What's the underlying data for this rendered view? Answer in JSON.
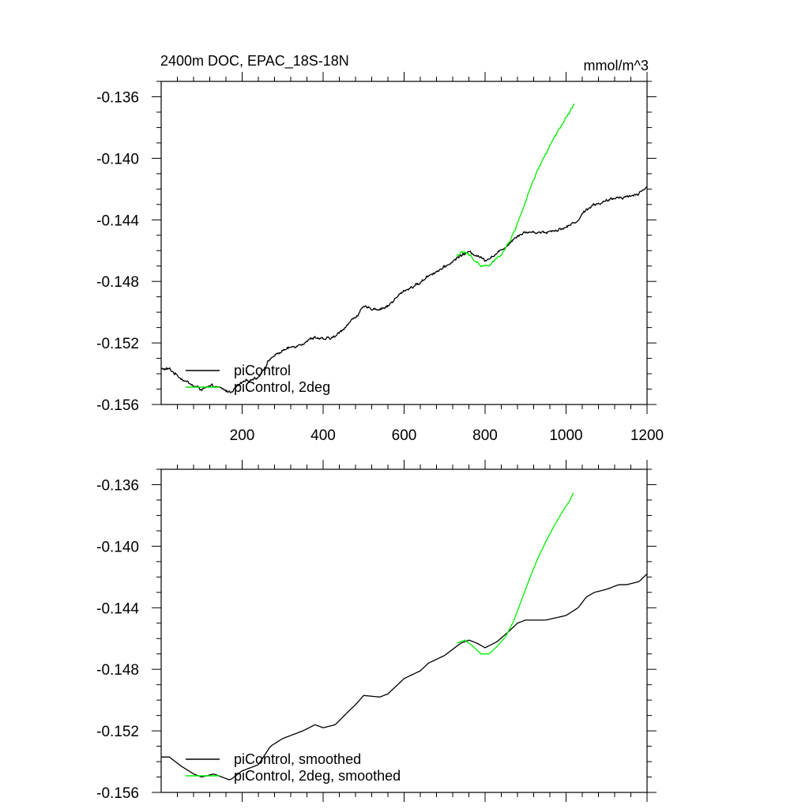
{
  "colors": {
    "picontrol": "#000000",
    "picontrol_2deg": "#00ee00",
    "frame": "#000000",
    "background": "#ffffff"
  },
  "chart_data": [
    {
      "type": "line",
      "title": "2400m DOC, EPAC_18S-18N",
      "units": "mmol/m^3",
      "xlabel": "",
      "ylabel": "",
      "xlim": [
        0,
        1200
      ],
      "ylim": [
        -0.156,
        -0.135
      ],
      "xticks": [
        200,
        400,
        600,
        800,
        1000,
        1200
      ],
      "xtick_labels": [
        "200",
        "400",
        "600",
        "800",
        "1000",
        "1200"
      ],
      "yticks": [
        -0.136,
        -0.14,
        -0.144,
        -0.148,
        -0.152,
        -0.156
      ],
      "ytick_labels": [
        "-0.136",
        "-0.140",
        "-0.144",
        "-0.148",
        "-0.152",
        "-0.156"
      ],
      "legend_position": "bottom-left",
      "series": [
        {
          "name": "piControl",
          "color": "#000000",
          "noisy": true,
          "x": [
            0,
            20,
            50,
            80,
            100,
            130,
            170,
            200,
            240,
            270,
            300,
            350,
            380,
            400,
            430,
            460,
            480,
            500,
            540,
            560,
            600,
            640,
            660,
            700,
            740,
            760,
            780,
            800,
            830,
            860,
            880,
            900,
            950,
            1000,
            1030,
            1050,
            1070,
            1100,
            1130,
            1150,
            1180,
            1200
          ],
          "y": [
            -0.1537,
            -0.1537,
            -0.1543,
            -0.1548,
            -0.155,
            -0.1548,
            -0.1552,
            -0.1546,
            -0.1542,
            -0.153,
            -0.1525,
            -0.152,
            -0.1516,
            -0.1518,
            -0.1516,
            -0.1508,
            -0.1503,
            -0.1497,
            -0.1498,
            -0.1496,
            -0.1486,
            -0.1481,
            -0.1476,
            -0.1471,
            -0.1463,
            -0.1461,
            -0.1463,
            -0.1466,
            -0.1462,
            -0.1455,
            -0.145,
            -0.1448,
            -0.1448,
            -0.1445,
            -0.144,
            -0.1433,
            -0.143,
            -0.1428,
            -0.1425,
            -0.1425,
            -0.1423,
            -0.1418
          ]
        },
        {
          "name": "piControl, 2deg",
          "color": "#00ee00",
          "noisy": true,
          "x": [
            730,
            750,
            770,
            790,
            810,
            830,
            850,
            870,
            890,
            910,
            930,
            950,
            970,
            990,
            1010,
            1020
          ],
          "y": [
            -0.1463,
            -0.1461,
            -0.1465,
            -0.147,
            -0.147,
            -0.1465,
            -0.1459,
            -0.1449,
            -0.1435,
            -0.1421,
            -0.1408,
            -0.1397,
            -0.1387,
            -0.1378,
            -0.137,
            -0.1364
          ]
        }
      ]
    },
    {
      "type": "line",
      "title": "",
      "units": "",
      "xlabel": "",
      "ylabel": "",
      "xlim": [
        0,
        1200
      ],
      "ylim": [
        -0.156,
        -0.135
      ],
      "xticks": [
        200,
        400,
        600,
        800,
        1000,
        1200
      ],
      "xtick_labels": [],
      "yticks": [
        -0.136,
        -0.14,
        -0.144,
        -0.148,
        -0.152,
        -0.156
      ],
      "ytick_labels": [
        "-0.136",
        "-0.140",
        "-0.144",
        "-0.148",
        "-0.152",
        "-0.156"
      ],
      "legend_position": "bottom-left",
      "series": [
        {
          "name": "piControl, smoothed",
          "color": "#000000",
          "noisy": false,
          "x": [
            0,
            20,
            50,
            80,
            100,
            130,
            170,
            200,
            240,
            270,
            300,
            350,
            380,
            400,
            430,
            460,
            480,
            500,
            540,
            560,
            600,
            640,
            660,
            700,
            740,
            760,
            780,
            800,
            830,
            860,
            880,
            900,
            950,
            1000,
            1030,
            1050,
            1070,
            1100,
            1130,
            1150,
            1180,
            1200
          ],
          "y": [
            -0.1537,
            -0.1537,
            -0.1543,
            -0.1548,
            -0.155,
            -0.1548,
            -0.1552,
            -0.1546,
            -0.1542,
            -0.153,
            -0.1525,
            -0.152,
            -0.1516,
            -0.1518,
            -0.1516,
            -0.1508,
            -0.1503,
            -0.1497,
            -0.1498,
            -0.1496,
            -0.1486,
            -0.1481,
            -0.1476,
            -0.1471,
            -0.1463,
            -0.1461,
            -0.1463,
            -0.1466,
            -0.1462,
            -0.1455,
            -0.145,
            -0.1448,
            -0.1448,
            -0.1445,
            -0.144,
            -0.1433,
            -0.143,
            -0.1428,
            -0.1425,
            -0.1425,
            -0.1423,
            -0.1418
          ]
        },
        {
          "name": "piControl, 2deg, smoothed",
          "color": "#00ee00",
          "noisy": false,
          "x": [
            730,
            750,
            770,
            790,
            810,
            830,
            850,
            870,
            890,
            910,
            930,
            950,
            970,
            990,
            1010,
            1020
          ],
          "y": [
            -0.1463,
            -0.1461,
            -0.1465,
            -0.147,
            -0.147,
            -0.1465,
            -0.1459,
            -0.1449,
            -0.1435,
            -0.1421,
            -0.1408,
            -0.1397,
            -0.1387,
            -0.1378,
            -0.137,
            -0.1364
          ]
        }
      ]
    }
  ]
}
